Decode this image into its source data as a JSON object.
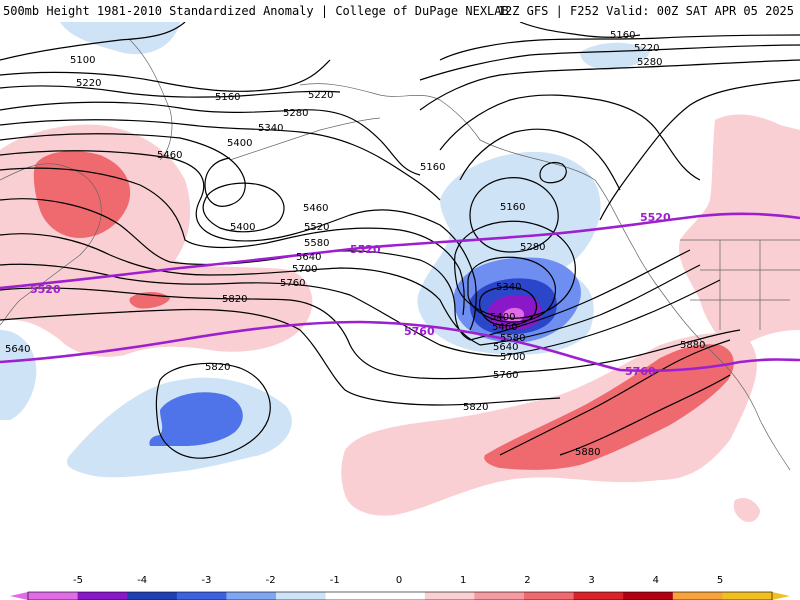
{
  "header": {
    "left": "500mb Height 1981-2010 Standardized Anomaly | College of DuPage NEXLAB",
    "right": "12Z GFS | F252 Valid: 00Z SAT APR 05 2025"
  },
  "colors": {
    "neg_light": "#cfe3f7",
    "neg_mid": "#6f8ef2",
    "neg_dark": "#2c46c9",
    "neg_purple": "#8a18c8",
    "neg_pink": "#e06be6",
    "pos_light": "#f9cfd3",
    "pos_mid": "#ef6a6e",
    "highlight_contour": "#9e1fcf",
    "contour": "#000000"
  },
  "contour_labels": [
    "5100",
    "5160",
    "5220",
    "5280",
    "5340",
    "5400",
    "5460",
    "5520",
    "5580",
    "5640",
    "5700",
    "5760",
    "5820",
    "5880"
  ],
  "map_labels": {
    "l5100": "5100",
    "l5160a": "5160",
    "l5220a": "5220",
    "l5160b": "5160",
    "l5220b": "5220",
    "l5280a": "5280",
    "l5340a": "5340",
    "l5400a": "5400",
    "l5460a": "5460",
    "l5400b": "5400",
    "l5460b": "5460",
    "l5520a": "5520",
    "l5580a": "5580",
    "l5640a": "5640",
    "l5700a": "5700",
    "l5760a": "5760",
    "l5820a": "5820",
    "l5640b": "5640",
    "l5160c": "5160",
    "l5220c": "5220",
    "l5280c": "5280",
    "l5340b": "5340",
    "l5400c": "5400",
    "l5460c": "5460",
    "l5580b": "5580",
    "l5640c": "5640",
    "l5700b": "5700",
    "l5760b": "5760",
    "l5820b": "5820",
    "l5820c": "5820",
    "l5160d": "5160",
    "l5220d": "5220",
    "l5280d": "5280",
    "l5880a": "5880",
    "l5880b": "5880",
    "h5520a": "5520",
    "h5520b": "5520",
    "h5520c": "5520",
    "h5760a": "5760",
    "h5760b": "5760"
  },
  "colorbar": {
    "ticks": [
      "-5",
      "-4",
      "-3",
      "-2",
      "-1",
      "0",
      "1",
      "2",
      "3",
      "4",
      "5"
    ],
    "colors": [
      "#e06be6",
      "#8a18c8",
      "#1f3fb5",
      "#3b63e0",
      "#7fa6f2",
      "#cfe3f7",
      "#ffffff",
      "#ffffff",
      "#f9cfd3",
      "#f59aa0",
      "#ef6a6e",
      "#d9232a",
      "#b00012",
      "#f7a23a",
      "#f0c020"
    ]
  }
}
